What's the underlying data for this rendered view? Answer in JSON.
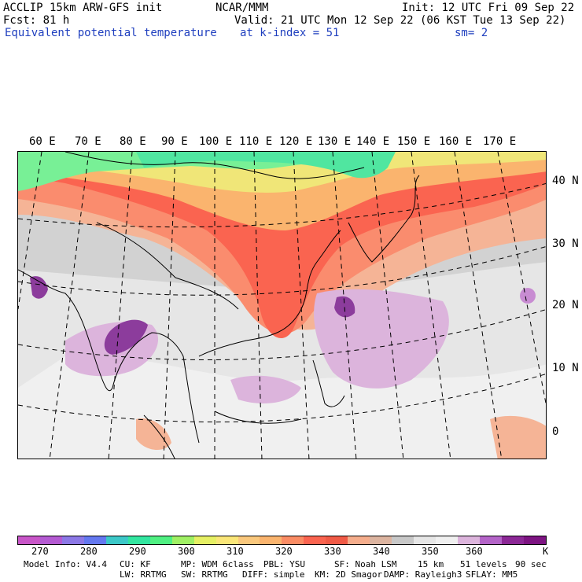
{
  "header": {
    "line1_left": "ACCLIP 15km ARW-GFS init",
    "line1_center": "NCAR/MMM",
    "line1_right": "Init: 12 UTC Fri 09 Sep 22",
    "fcst": "Fcst:  81 h",
    "valid": "Valid: 21 UTC Mon 12 Sep 22 (06 KST Tue 13 Sep 22)",
    "field": "Equivalent potential temperature",
    "level": "at k-index =  51",
    "smooth": "sm= 2"
  },
  "map": {
    "lon_labels": [
      "60 E",
      "70 E",
      "80 E",
      "90 E",
      "100 E",
      "110 E",
      "120 E",
      "130 E",
      "140 E",
      "150 E",
      "160 E",
      "170 E"
    ],
    "lat_labels": [
      "40 N",
      "30 N",
      "20 N",
      "10 N",
      "0"
    ]
  },
  "colorbar": {
    "colors": [
      "#c856c8",
      "#b45ad2",
      "#8c78e6",
      "#6478f0",
      "#3cc8c8",
      "#32e6a0",
      "#50f082",
      "#a0f064",
      "#e6f064",
      "#fae678",
      "#fac87d",
      "#fab46e",
      "#fa8c64",
      "#fa6450",
      "#f05a46",
      "#f5ad8c",
      "#dcb4a0",
      "#c8c8c8",
      "#e6e6e6",
      "#f0f0f0",
      "#dcb4dc",
      "#b464c8",
      "#8c2896",
      "#7d1482"
    ],
    "tick_labels": [
      "270",
      "280",
      "290",
      "300",
      "310",
      "320",
      "330",
      "340",
      "350",
      "360"
    ],
    "unit": "K"
  },
  "footer": {
    "model_info": "Model Info: V4.4",
    "cu": "CU: KF",
    "mp": "MP: WDM 6class",
    "pbl": "PBL: YSU",
    "sf": "SF: Noah LSM",
    "res": "15 km",
    "levels": "51 levels",
    "dt": "90 sec",
    "lw": "LW: RRTMG",
    "sw": "SW: RRTMG",
    "diff": "DIFF: simple",
    "km": "KM: 2D Smagor",
    "damp": "DAMP: Rayleigh3",
    "sflay": "SFLAY: MM5"
  }
}
